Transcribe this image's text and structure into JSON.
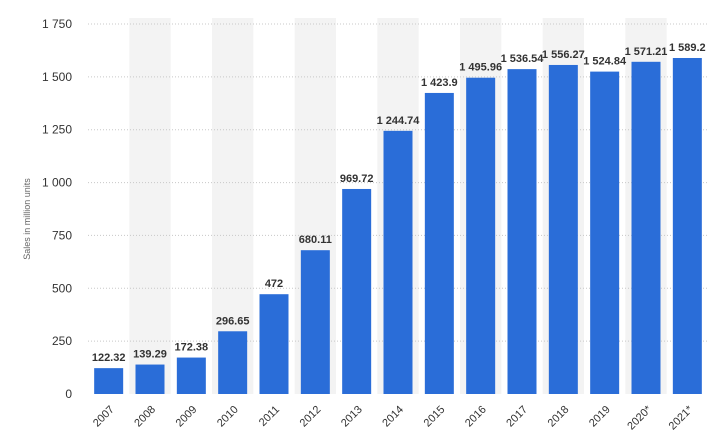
{
  "chart_data": {
    "type": "bar",
    "title": "",
    "xlabel": "",
    "ylabel": "Sales in million units",
    "categories": [
      "2007",
      "2008",
      "2009",
      "2010",
      "2011",
      "2012",
      "2013",
      "2014",
      "2015",
      "2016",
      "2017",
      "2018",
      "2019",
      "2020*",
      "2021*"
    ],
    "values": [
      122.32,
      139.29,
      172.38,
      296.65,
      472,
      680.11,
      969.72,
      1244.74,
      1423.9,
      1495.96,
      1536.54,
      1556.27,
      1524.84,
      1571.21,
      1589.2
    ],
    "value_labels": [
      "122.32",
      "139.29",
      "172.38",
      "296.65",
      "472",
      "680.11",
      "969.72",
      "1 244.74",
      "1 423.9",
      "1 495.96",
      "1 536.54",
      "1 556.27",
      "1 524.84",
      "1 571.21",
      "1 589.2"
    ],
    "y_ticks": [
      0,
      250,
      500,
      750,
      1000,
      1250,
      1500,
      1750
    ],
    "y_tick_labels": [
      "0",
      "250",
      "500",
      "750",
      "1 000",
      "1 250",
      "1 500",
      "1 750"
    ],
    "ylim": [
      0,
      1750
    ],
    "grid": true,
    "bar_color": "#2a6dd8",
    "band_color": "#f3f3f3",
    "grid_color": "#c8c8c8"
  }
}
